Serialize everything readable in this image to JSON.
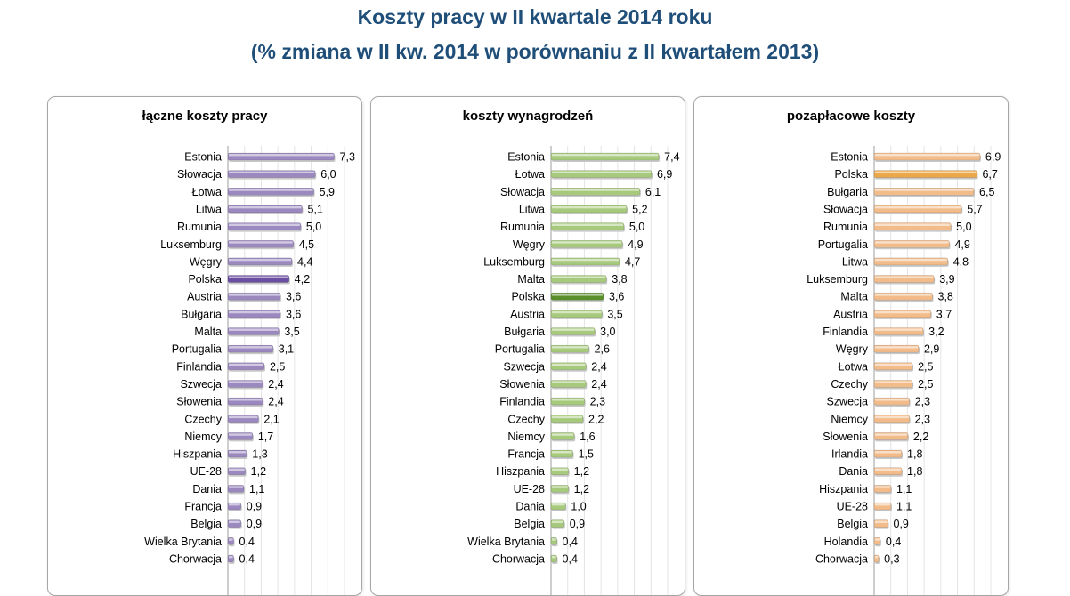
{
  "header": {
    "title_line1": "Koszty pracy w II kwartale 2014 roku",
    "title_line2": "(% zmiana w II kw. 2014 w porównaniu z II kwartałem 2013)"
  },
  "colors": {
    "purple": "#9a88bf",
    "purple_highlight": "#6a4fa3",
    "green": "#a6c97c",
    "green_highlight": "#5a8f2a",
    "orange": "#f2bb8a",
    "orange_highlight": "#eba84a"
  },
  "chart_data": [
    {
      "type": "bar",
      "orientation": "horizontal",
      "title": "łączne koszty pracy",
      "highlight": "Polska",
      "categories": [
        "Estonia",
        "Słowacja",
        "Łotwa",
        "Litwa",
        "Rumunia",
        "Luksemburg",
        "Węgry",
        "Polska",
        "Austria",
        "Bułgaria",
        "Malta",
        "Portugalia",
        "Finlandia",
        "Szwecja",
        "Słowenia",
        "Czechy",
        "Niemcy",
        "Hiszpania",
        "UE-28",
        "Dania",
        "Francja",
        "Belgia",
        "Wielka Brytania",
        "Chorwacja"
      ],
      "values": [
        7.3,
        6.0,
        5.9,
        5.1,
        5.0,
        4.5,
        4.4,
        4.2,
        3.6,
        3.6,
        3.5,
        3.1,
        2.5,
        2.4,
        2.4,
        2.1,
        1.7,
        1.3,
        1.2,
        1.1,
        0.9,
        0.9,
        0.4,
        0.4
      ],
      "value_labels": [
        "7,3",
        "6,0",
        "5,9",
        "5,1",
        "5,0",
        "4,5",
        "4,4",
        "4,2",
        "3,6",
        "3,6",
        "3,5",
        "3,1",
        "2,5",
        "2,4",
        "2,4",
        "2,1",
        "1,7",
        "1,3",
        "1,2",
        "1,1",
        "0,9",
        "0,9",
        "0,4",
        "0,4"
      ],
      "xlim": [
        0,
        8
      ]
    },
    {
      "type": "bar",
      "orientation": "horizontal",
      "title": "koszty wynagrodzeń",
      "highlight": "Polska",
      "categories": [
        "Estonia",
        "Łotwa",
        "Słowacja",
        "Litwa",
        "Rumunia",
        "Węgry",
        "Luksemburg",
        "Malta",
        "Polska",
        "Austria",
        "Bułgaria",
        "Portugalia",
        "Szwecja",
        "Słowenia",
        "Finlandia",
        "Czechy",
        "Niemcy",
        "Francja",
        "Hiszpania",
        "UE-28",
        "Dania",
        "Belgia",
        "Wielka Brytania",
        "Chorwacja"
      ],
      "values": [
        7.4,
        6.9,
        6.1,
        5.2,
        5.0,
        4.9,
        4.7,
        3.8,
        3.6,
        3.5,
        3.0,
        2.6,
        2.4,
        2.4,
        2.3,
        2.2,
        1.6,
        1.5,
        1.2,
        1.2,
        1.0,
        0.9,
        0.4,
        0.4
      ],
      "value_labels": [
        "7,4",
        "6,9",
        "6,1",
        "5,2",
        "5,0",
        "4,9",
        "4,7",
        "3,8",
        "3,6",
        "3,5",
        "3,0",
        "2,6",
        "2,4",
        "2,4",
        "2,3",
        "2,2",
        "1,6",
        "1,5",
        "1,2",
        "1,2",
        "1,0",
        "0,9",
        "0,4",
        "0,4"
      ],
      "xlim": [
        0,
        8
      ]
    },
    {
      "type": "bar",
      "orientation": "horizontal",
      "title": "pozapłacowe koszty",
      "highlight": "Polska",
      "categories": [
        "Estonia",
        "Polska",
        "Bułgaria",
        "Słowacja",
        "Rumunia",
        "Portugalia",
        "Litwa",
        "Luksemburg",
        "Malta",
        "Austria",
        "Finlandia",
        "Węgry",
        "Łotwa",
        "Czechy",
        "Szwecja",
        "Niemcy",
        "Słowenia",
        "Irlandia",
        "Dania",
        "Hiszpania",
        "UE-28",
        "Belgia",
        "Holandia",
        "Chorwacja"
      ],
      "values": [
        6.9,
        6.7,
        6.5,
        5.7,
        5.0,
        4.9,
        4.8,
        3.9,
        3.8,
        3.7,
        3.2,
        2.9,
        2.5,
        2.5,
        2.3,
        2.3,
        2.2,
        1.8,
        1.8,
        1.1,
        1.1,
        0.9,
        0.4,
        0.3
      ],
      "value_labels": [
        "6,9",
        "6,7",
        "6,5",
        "5,7",
        "5,0",
        "4,9",
        "4,8",
        "3,9",
        "3,8",
        "3,7",
        "3,2",
        "2,9",
        "2,5",
        "2,5",
        "2,3",
        "2,3",
        "2,2",
        "1,8",
        "1,8",
        "1,1",
        "1,1",
        "0,9",
        "0,4",
        "0,3"
      ],
      "xlim": [
        0,
        7.6
      ]
    }
  ]
}
